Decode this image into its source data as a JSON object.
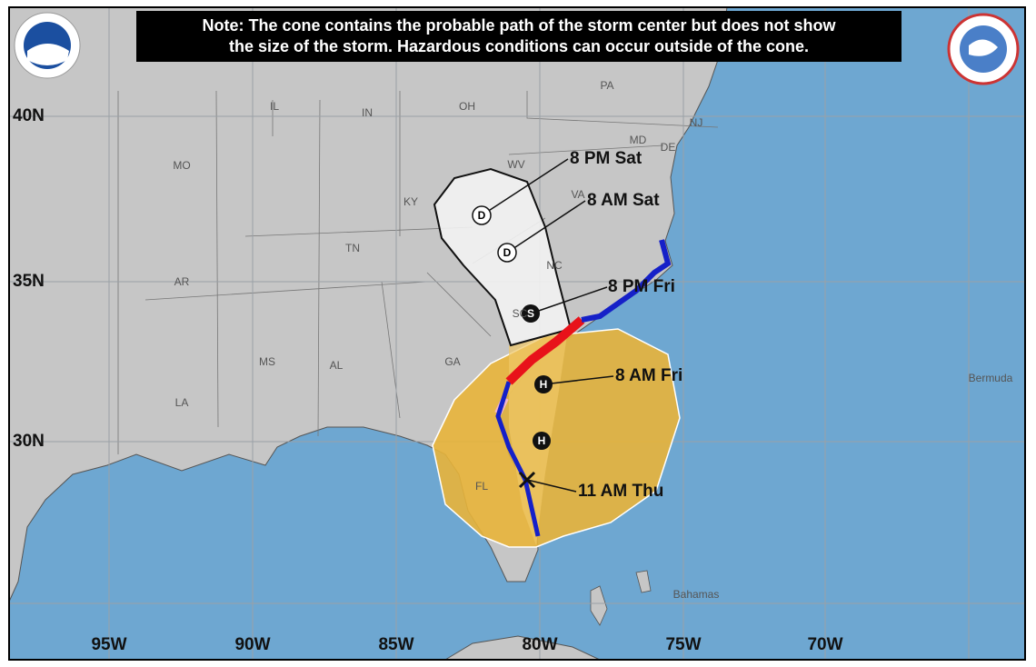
{
  "note": [
    "Note: The cone contains the probable path of the storm center but does not show",
    "the size of the storm. Hazardous conditions can occur outside of the cone."
  ],
  "latitude_labels": [
    "40N",
    "35N",
    "30N"
  ],
  "longitude_labels": [
    "95W",
    "90W",
    "85W",
    "80W",
    "75W",
    "70W"
  ],
  "state_labels": [
    "PA",
    "IL",
    "IN",
    "OH",
    "NJ",
    "MD",
    "DE",
    "MO",
    "WV",
    "KY",
    "VA",
    "TN",
    "NC",
    "AR",
    "SC",
    "MS",
    "AL",
    "GA",
    "LA",
    "FL"
  ],
  "place_labels": [
    "Bermuda",
    "Bahamas"
  ],
  "forecast_points": [
    {
      "symbol": "D",
      "label": "8 PM Sat"
    },
    {
      "symbol": "D",
      "label": "8 AM Sat"
    },
    {
      "symbol": "S",
      "label": "8 PM Fri"
    },
    {
      "symbol": "H",
      "label": "8 AM Fri"
    },
    {
      "symbol": "H"
    }
  ],
  "current_position": {
    "label": "11 AM Thu"
  }
}
